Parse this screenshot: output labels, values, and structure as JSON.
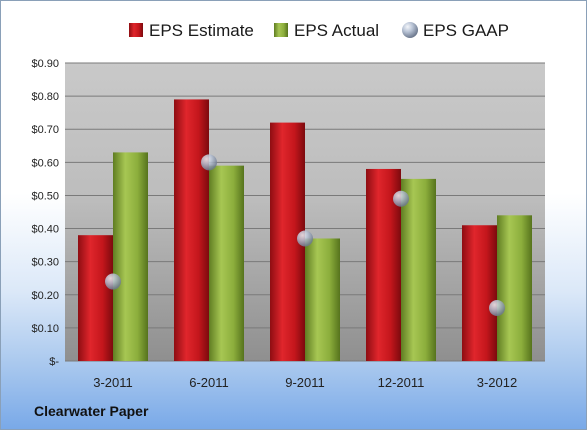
{
  "company": "Clearwater Paper",
  "chart_data": {
    "type": "bar",
    "categories": [
      "3-2011",
      "6-2011",
      "9-2011",
      "12-2011",
      "3-2012"
    ],
    "series": [
      {
        "name": "EPS Estimate",
        "color": "#c4161c",
        "values": [
          0.38,
          0.79,
          0.72,
          0.58,
          0.41
        ]
      },
      {
        "name": "EPS Actual",
        "color": "#8cae3c",
        "values": [
          0.63,
          0.59,
          0.37,
          0.55,
          0.44
        ]
      },
      {
        "name": "EPS GAAP",
        "color": "#b9c4d6",
        "marker": "sphere",
        "values": [
          0.24,
          0.6,
          0.37,
          0.49,
          0.16
        ]
      }
    ],
    "yticks": [
      "$-",
      "$0.10",
      "$0.20",
      "$0.30",
      "$0.40",
      "$0.50",
      "$0.60",
      "$0.70",
      "$0.80",
      "$0.90"
    ],
    "ylim": [
      0,
      0.9
    ],
    "legend_position": "top",
    "grid": true
  }
}
